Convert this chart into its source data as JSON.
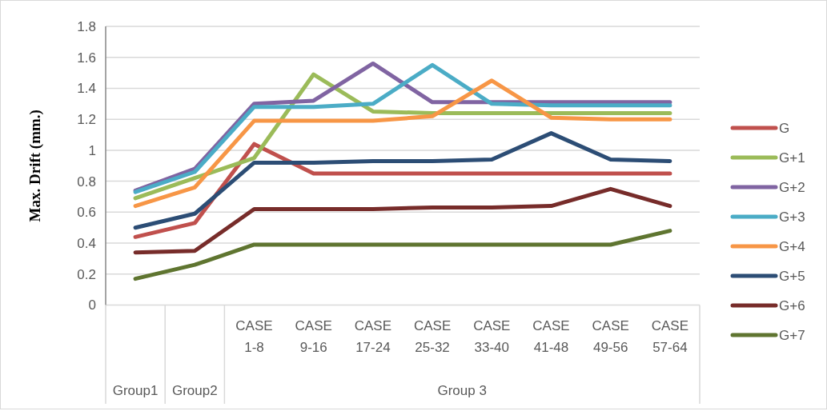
{
  "chart_data": {
    "type": "line",
    "ylabel": "Max. Drift (mm.)",
    "categories": [
      null,
      null,
      "CASE 1-8",
      "CASE 9-16",
      "CASE 17-24",
      "CASE 25-32",
      "CASE 33-40",
      "CASE 41-48",
      "CASE 49-56",
      "CASE 57-64"
    ],
    "annotations": [
      "Group1",
      "Group2",
      "Group 3"
    ],
    "ylim": [
      0,
      1.8
    ],
    "yticks": [
      0,
      0.2,
      0.4,
      0.6,
      0.8,
      1,
      1.2,
      1.4,
      1.6,
      1.8
    ],
    "grid": "y",
    "legend": "right",
    "marker": "none",
    "line_style": "solid",
    "series": [
      {
        "name": "G",
        "color": "#c0504d",
        "values": [
          0.44,
          0.53,
          1.04,
          0.85,
          0.85,
          0.85,
          0.85,
          0.85,
          0.85,
          0.85
        ]
      },
      {
        "name": "G+1",
        "color": "#9bbb59",
        "values": [
          0.69,
          0.82,
          0.95,
          1.49,
          1.25,
          1.24,
          1.24,
          1.24,
          1.24,
          1.24
        ]
      },
      {
        "name": "G+2",
        "color": "#8064a2",
        "values": [
          0.74,
          0.88,
          1.3,
          1.32,
          1.56,
          1.31,
          1.31,
          1.31,
          1.31,
          1.31
        ]
      },
      {
        "name": "G+3",
        "color": "#4bacc6",
        "values": [
          0.73,
          0.86,
          1.28,
          1.28,
          1.3,
          1.55,
          1.3,
          1.29,
          1.29,
          1.29
        ]
      },
      {
        "name": "G+4",
        "color": "#f79646",
        "values": [
          0.64,
          0.76,
          1.19,
          1.19,
          1.19,
          1.22,
          1.45,
          1.21,
          1.2,
          1.2
        ]
      },
      {
        "name": "G+5",
        "color": "#2c4d75",
        "values": [
          0.5,
          0.59,
          0.92,
          0.92,
          0.93,
          0.93,
          0.94,
          1.11,
          0.94,
          0.93
        ]
      },
      {
        "name": "G+6",
        "color": "#772c2a",
        "values": [
          0.34,
          0.35,
          0.62,
          0.62,
          0.62,
          0.63,
          0.63,
          0.64,
          0.75,
          0.64
        ]
      },
      {
        "name": "G+7",
        "color": "#5f7530",
        "values": [
          0.17,
          0.26,
          0.39,
          0.39,
          0.39,
          0.39,
          0.39,
          0.39,
          0.39,
          0.48
        ]
      }
    ]
  }
}
